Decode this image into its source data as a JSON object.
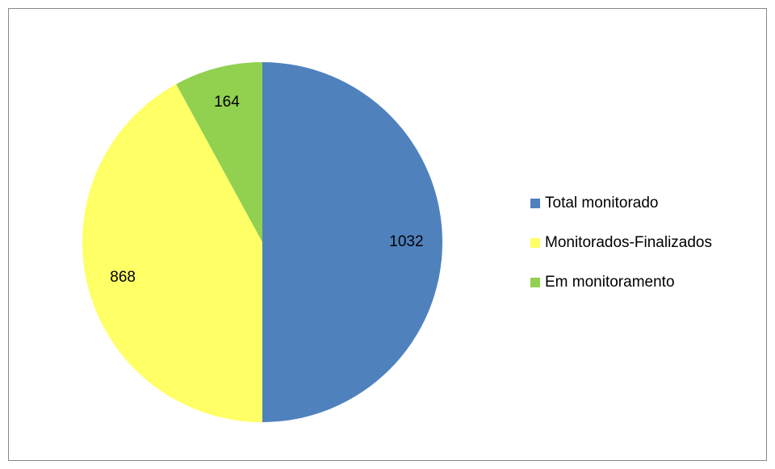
{
  "chart_data": {
    "type": "pie",
    "categories": [
      "Total monitorado",
      "Monitorados-Finalizados",
      "Em monitoramento"
    ],
    "values": [
      1032,
      868,
      164
    ],
    "colors": [
      "#4f81bd",
      "#ffff66",
      "#92d050"
    ],
    "legend": "right"
  }
}
